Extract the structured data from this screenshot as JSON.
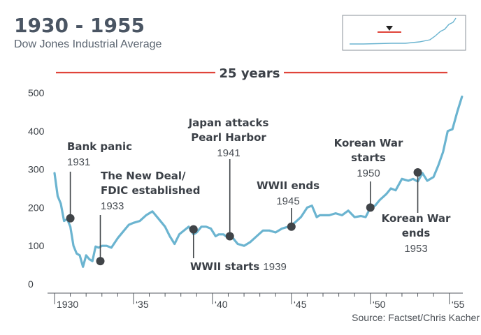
{
  "title": "1930 - 1955",
  "subtitle": "Dow Jones Industrial Average",
  "source": "Source: Factset/Chris Kacher",
  "span_label": "25 years",
  "colors": {
    "line": "#6bb4d0",
    "accent": "#e0443a",
    "marker": "#404448",
    "text": "#3b4047"
  },
  "chart_data": {
    "type": "line",
    "title": "1930 - 1955",
    "subtitle": "Dow Jones Industrial Average",
    "xlabel": "",
    "ylabel": "",
    "xlim": [
      1929.6,
      1955.8
    ],
    "ylim": [
      0,
      500
    ],
    "yticks": [
      0,
      100,
      200,
      300,
      400,
      500
    ],
    "ytick_labels": [
      "0",
      "100",
      "200",
      "300",
      "400",
      "500"
    ],
    "xticks": [
      1930,
      1935,
      1940,
      1945,
      1950,
      1955
    ],
    "xtick_labels": [
      "1930",
      "‘35",
      "‘40",
      "‘45",
      "‘50",
      "‘55"
    ],
    "grid": false,
    "series": [
      {
        "x": [
          1930.0,
          1930.2,
          1930.4,
          1930.6,
          1930.8,
          1931.0,
          1931.2,
          1931.4,
          1931.6,
          1931.8,
          1932.0,
          1932.2,
          1932.4,
          1932.6,
          1932.8,
          1933.0,
          1933.3,
          1933.6,
          1934.0,
          1934.4,
          1934.7,
          1935.0,
          1935.4,
          1935.8,
          1936.2,
          1936.6,
          1937.0,
          1937.3,
          1937.6,
          1937.9,
          1938.2,
          1938.5,
          1938.8,
          1939.0,
          1939.3,
          1939.6,
          1939.9,
          1940.2,
          1940.4,
          1940.7,
          1941.0,
          1941.3,
          1941.6,
          1942.0,
          1942.4,
          1942.8,
          1943.2,
          1943.6,
          1944.0,
          1944.4,
          1944.8,
          1945.2,
          1945.6,
          1946.0,
          1946.3,
          1946.6,
          1946.8,
          1947.0,
          1947.4,
          1947.8,
          1948.2,
          1948.6,
          1949.0,
          1949.4,
          1949.7,
          1950.0,
          1950.3,
          1950.6,
          1951.0,
          1951.3,
          1951.6,
          1952.0,
          1952.4,
          1952.7,
          1953.0,
          1953.3,
          1953.6,
          1954.0,
          1954.3,
          1954.6,
          1954.9,
          1955.2,
          1955.5,
          1955.8
        ],
        "y": [
          290,
          230,
          210,
          165,
          170,
          150,
          100,
          80,
          75,
          45,
          75,
          65,
          60,
          98,
          95,
          100,
          100,
          95,
          120,
          140,
          155,
          160,
          165,
          180,
          190,
          170,
          150,
          125,
          105,
          130,
          140,
          150,
          130,
          135,
          150,
          150,
          145,
          125,
          130,
          130,
          120,
          120,
          105,
          100,
          110,
          125,
          140,
          140,
          135,
          145,
          150,
          160,
          175,
          200,
          205,
          175,
          180,
          180,
          180,
          185,
          180,
          192,
          175,
          178,
          175,
          200,
          205,
          220,
          235,
          250,
          245,
          275,
          270,
          275,
          268,
          290,
          270,
          280,
          310,
          345,
          400,
          405,
          450,
          490
        ]
      }
    ],
    "annotations": [
      {
        "x": 1931.0,
        "y": 172,
        "label": "Bank panic",
        "year": "1931"
      },
      {
        "x": 1932.9,
        "y": 60,
        "label": "The New Deal/\nFDIC established",
        "year": "1933"
      },
      {
        "x": 1938.8,
        "y": 143,
        "label": "WWII starts",
        "year": "1939"
      },
      {
        "x": 1941.1,
        "y": 125,
        "label": "Japan attacks\nPearl Harbor",
        "year": "1941"
      },
      {
        "x": 1945.0,
        "y": 150,
        "label": "WWII ends",
        "year": "1945"
      },
      {
        "x": 1950.0,
        "y": 200,
        "label": "Korean War\nstarts",
        "year": "1950"
      },
      {
        "x": 1953.0,
        "y": 292,
        "label": "Korean War\nends",
        "year": "1953"
      }
    ]
  }
}
